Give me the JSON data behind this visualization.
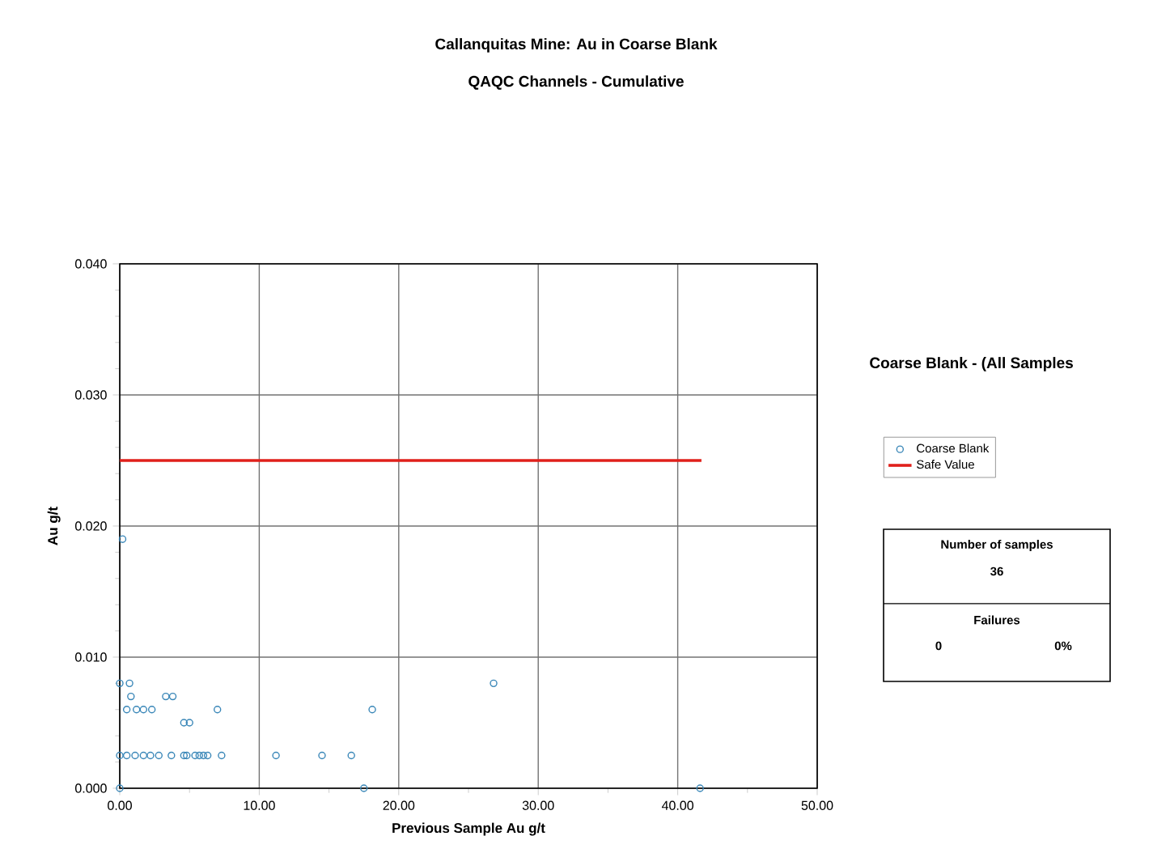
{
  "chart_data": {
    "type": "scatter",
    "title": "Callanquitas Mine: Au in Coarse Blank",
    "subtitle": "QAQC Channels - Cumulative",
    "xlabel": "Previous Sample Au g/t",
    "ylabel": "Au g/t",
    "xlim": [
      0,
      50
    ],
    "ylim": [
      0,
      0.04
    ],
    "xticks": [
      {
        "value": 0,
        "label": "0.00"
      },
      {
        "value": 10,
        "label": "10.00"
      },
      {
        "value": 20,
        "label": "20.00"
      },
      {
        "value": 30,
        "label": "30.00"
      },
      {
        "value": 40,
        "label": "40.00"
      },
      {
        "value": 50,
        "label": "50.00"
      }
    ],
    "yticks": [
      {
        "value": 0,
        "label": "0.000"
      },
      {
        "value": 0.01,
        "label": "0.010"
      },
      {
        "value": 0.02,
        "label": "0.020"
      },
      {
        "value": 0.03,
        "label": "0.030"
      },
      {
        "value": 0.04,
        "label": "0.040"
      }
    ],
    "grid": true,
    "legend": "right",
    "series": [
      {
        "name": "Coarse Blank",
        "marker": "circle",
        "color": "#3a87b8",
        "x": [
          0,
          0.2,
          0,
          0.7,
          0.8,
          3.3,
          3.8,
          0.5,
          1.2,
          1.7,
          2.3,
          7.0,
          4.6,
          5.0,
          0,
          0.5,
          1.1,
          1.7,
          2.2,
          2.8,
          3.7,
          4.6,
          4.8,
          5.4,
          5.7,
          6.0,
          6.3,
          7.3,
          11.2,
          14.5,
          16.6,
          17.5,
          18.1,
          26.8,
          41.6
        ],
        "values": [
          0,
          0.019,
          0.008,
          0.008,
          0.007,
          0.007,
          0.007,
          0.006,
          0.006,
          0.006,
          0.006,
          0.006,
          0.005,
          0.005,
          0.0025,
          0.0025,
          0.0025,
          0.0025,
          0.0025,
          0.0025,
          0.0025,
          0.0025,
          0.0025,
          0.0025,
          0.0025,
          0.0025,
          0.0025,
          0.0025,
          0.0025,
          0.0025,
          0.0025,
          0,
          0.006,
          0.008,
          0
        ]
      },
      {
        "name": "Safe Value",
        "type": "line",
        "marker": "none",
        "line_style": "solid",
        "color": "#e0201b",
        "x": [
          0,
          41.7
        ],
        "values": [
          0.025,
          0.025
        ]
      }
    ],
    "annotations": [
      "Coarse Blank - (All Samples",
      "Number of samples",
      "36",
      "Failures",
      "0",
      "0%"
    ]
  }
}
